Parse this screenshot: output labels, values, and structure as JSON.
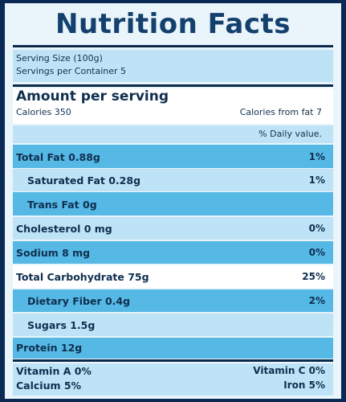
{
  "title": "Nutrition Facts",
  "serving": {
    "size": "Serving Size (100g)",
    "per_container": "Servings per Container 5"
  },
  "amount_header": "Amount per serving",
  "calories": "Calories 350",
  "calories_fat": "Calories from fat 7",
  "daily_value_header": "% Daily value.",
  "nutrients": [
    {
      "label": "Total Fat 0.88g",
      "pct": "1%"
    },
    {
      "label": "Saturated Fat 0.28g",
      "pct": "1%"
    },
    {
      "label": "Trans Fat 0g",
      "pct": ""
    },
    {
      "label": "Cholesterol 0 mg",
      "pct": "0%"
    },
    {
      "label": "Sodium 8 mg",
      "pct": "0%"
    },
    {
      "label": "Total Carbohydrate 75g",
      "pct": "25%"
    },
    {
      "label": "Dietary Fiber 0.4g",
      "pct": "2%"
    },
    {
      "label": "Sugars 1.5g",
      "pct": ""
    },
    {
      "label": "Protein 12g",
      "pct": ""
    }
  ],
  "vitamins": {
    "vitamin_a": "Vitamin A 0%",
    "vitamin_c": "Vitamin C 0%",
    "calcium": "Calcium 5%",
    "iron": "Iron 5%"
  }
}
